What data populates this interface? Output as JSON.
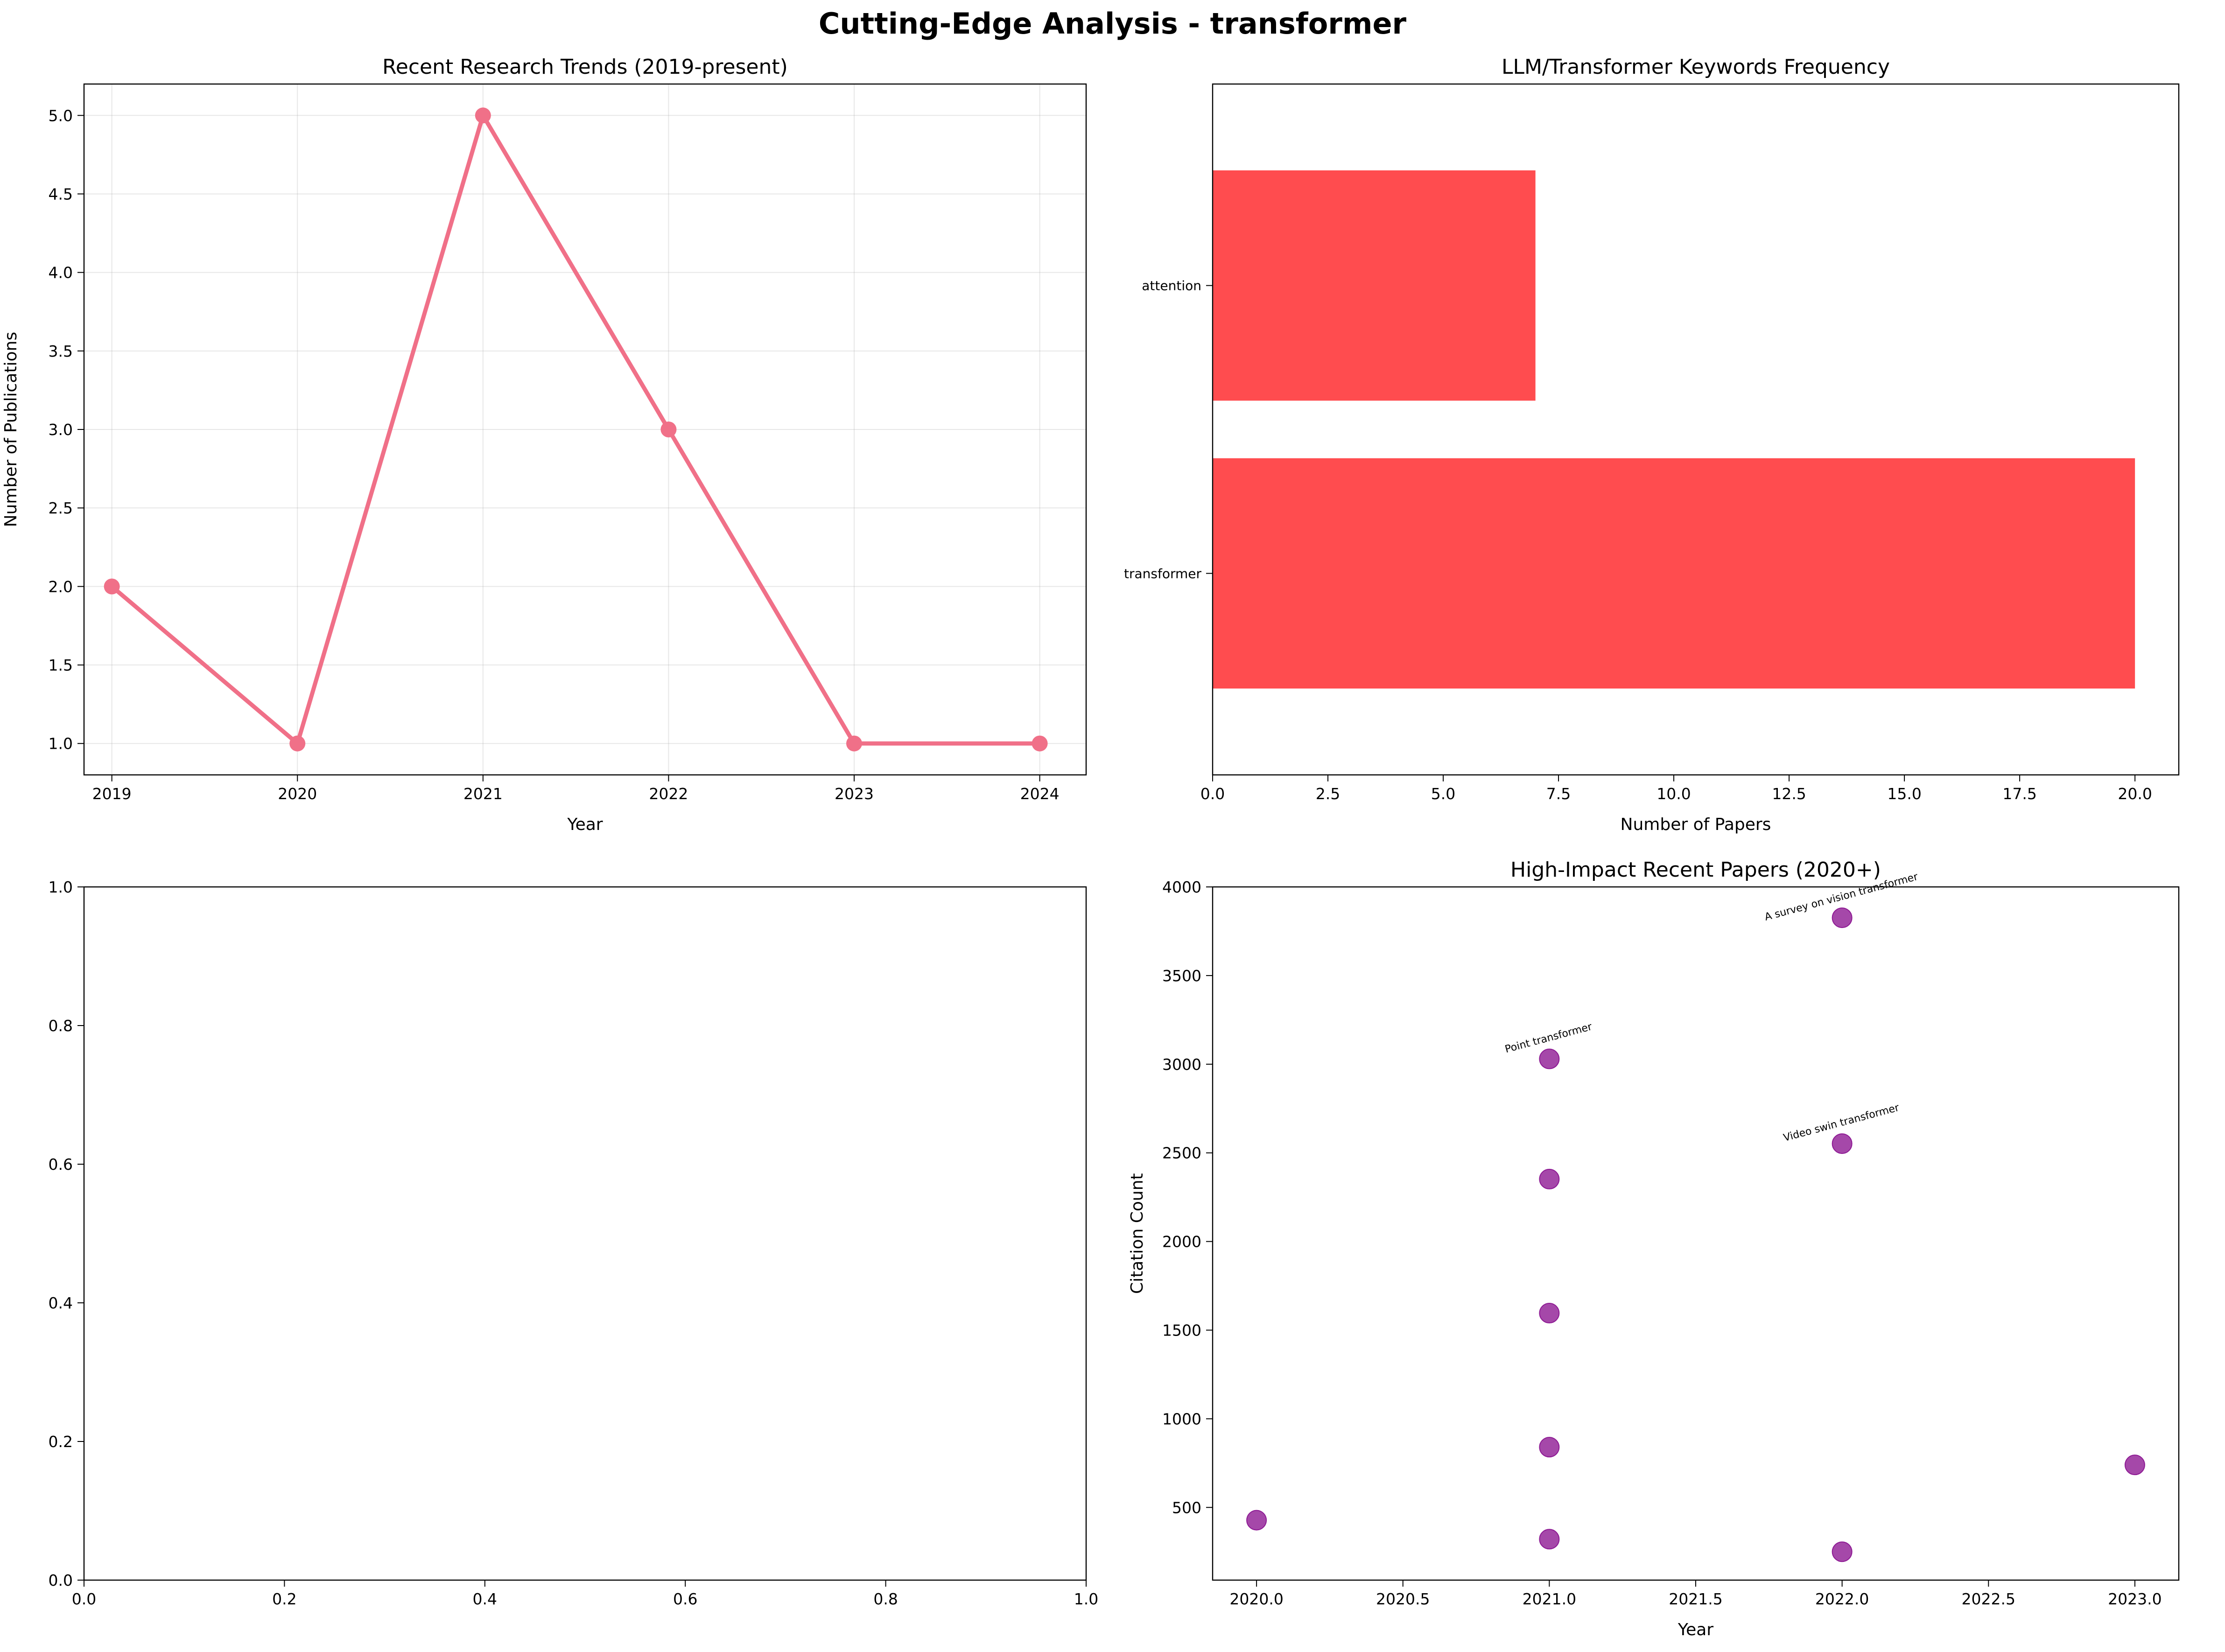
{
  "figure": {
    "title": "Cutting-Edge Analysis - transformer"
  },
  "chart_data": [
    {
      "type": "line",
      "title": "Recent Research Trends (2019-present)",
      "xlabel": "Year",
      "ylabel": "Number of Publications",
      "x": [
        2019,
        2020,
        2021,
        2022,
        2023,
        2024
      ],
      "y": [
        2,
        1,
        5,
        3,
        1,
        1
      ],
      "xlim": [
        2018.85,
        2024.25
      ],
      "ylim": [
        0.8,
        5.2
      ],
      "xticks": [
        2019,
        2020,
        2021,
        2022,
        2023,
        2024
      ],
      "xtick_labels": [
        "2019",
        "2020",
        "2021",
        "2022",
        "2023",
        "2024"
      ],
      "yticks": [
        1.0,
        1.5,
        2.0,
        2.5,
        3.0,
        3.5,
        4.0,
        4.5,
        5.0
      ],
      "ytick_labels": [
        "1.0",
        "1.5",
        "2.0",
        "2.5",
        "3.0",
        "3.5",
        "4.0",
        "4.5",
        "5.0"
      ],
      "grid": true,
      "color": "#f07088"
    },
    {
      "type": "bar",
      "orientation": "horizontal",
      "title": "LLM/Transformer Keywords Frequency",
      "xlabel": "Number of Papers",
      "ylabel": "",
      "categories": [
        "transformer",
        "attention"
      ],
      "values": [
        20,
        7
      ],
      "xlim": [
        0,
        20.95
      ],
      "xticks": [
        0,
        2.5,
        5,
        7.5,
        10,
        12.5,
        15,
        17.5,
        20
      ],
      "xtick_labels": [
        "0.0",
        "2.5",
        "5.0",
        "7.5",
        "10.0",
        "12.5",
        "15.0",
        "17.5",
        "20.0"
      ],
      "grid": false,
      "color": "#ff4c4f"
    },
    {
      "type": "scatter",
      "title": "",
      "xlabel": "",
      "ylabel": "",
      "x": [],
      "y": [],
      "xlim": [
        0,
        1
      ],
      "ylim": [
        0,
        1
      ],
      "xticks": [
        0,
        0.2,
        0.4,
        0.6,
        0.8,
        1.0
      ],
      "xtick_labels": [
        "0.0",
        "0.2",
        "0.4",
        "0.6",
        "0.8",
        "1.0"
      ],
      "yticks": [
        0,
        0.2,
        0.4,
        0.6,
        0.8,
        1.0
      ],
      "ytick_labels": [
        "0.0",
        "0.2",
        "0.4",
        "0.6",
        "0.8",
        "1.0"
      ],
      "grid": false
    },
    {
      "type": "scatter",
      "title": "High-Impact Recent Papers (2020+)",
      "xlabel": "Year",
      "ylabel": "Citation Count",
      "points": [
        {
          "x": 2022,
          "y": 3826,
          "label": "A survey on vision transformer"
        },
        {
          "x": 2021,
          "y": 3030,
          "label": "Point transformer"
        },
        {
          "x": 2022,
          "y": 2552,
          "label": "Video swin transformer"
        },
        {
          "x": 2021,
          "y": 2352,
          "label": ""
        },
        {
          "x": 2021,
          "y": 1596,
          "label": ""
        },
        {
          "x": 2021,
          "y": 840,
          "label": ""
        },
        {
          "x": 2023,
          "y": 740,
          "label": ""
        },
        {
          "x": 2020,
          "y": 428,
          "label": ""
        },
        {
          "x": 2021,
          "y": 321,
          "label": ""
        },
        {
          "x": 2022,
          "y": 250,
          "label": ""
        }
      ],
      "xlim": [
        2019.85,
        2023.15
      ],
      "ylim": [
        90,
        4000
      ],
      "xticks": [
        2020.0,
        2020.5,
        2021.0,
        2021.5,
        2022.0,
        2022.5,
        2023.0
      ],
      "xtick_labels": [
        "2020.0",
        "2020.5",
        "2021.0",
        "2021.5",
        "2022.0",
        "2022.5",
        "2023.0"
      ],
      "yticks": [
        500,
        1000,
        1500,
        2000,
        2500,
        3000,
        3500,
        4000
      ],
      "ytick_labels": [
        "500",
        "1000",
        "1500",
        "2000",
        "2500",
        "3000",
        "3500",
        "4000"
      ],
      "grid": false,
      "color": "#8e1a94"
    }
  ]
}
